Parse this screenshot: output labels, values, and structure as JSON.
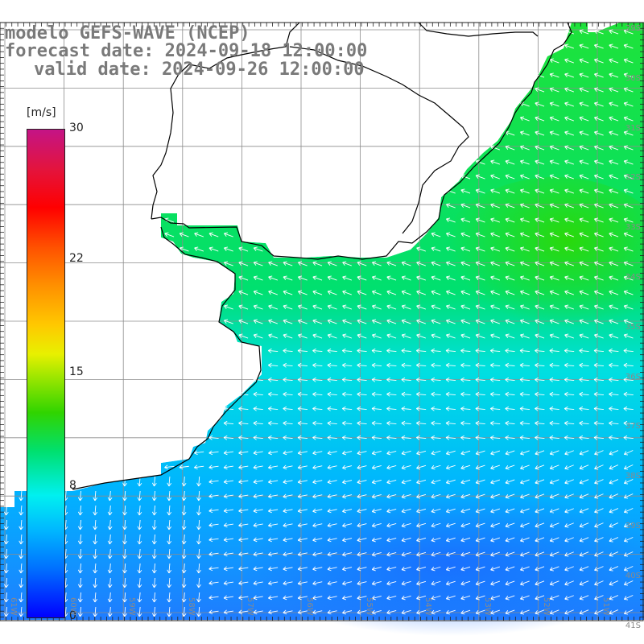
{
  "title": {
    "line1": "modelo GEFS-WAVE (NCEP)",
    "line2": "forecast date: 2024-09-18 12:00:00",
    "line3": "valid date: 2024-09-26 12:00:00"
  },
  "legend": {
    "unit": "[m/s]",
    "ticks": [
      {
        "label": "30",
        "value": 30
      },
      {
        "label": "22",
        "value": 22
      },
      {
        "label": "15",
        "value": 15
      },
      {
        "label": "8",
        "value": 8
      },
      {
        "label": "0",
        "value": 0
      }
    ]
  },
  "map": {
    "latitude_labels": [
      "29S",
      "30S",
      "31S",
      "32S",
      "33S",
      "34S",
      "35S",
      "36S",
      "37S",
      "38S",
      "39S",
      "40S",
      "41S"
    ],
    "longitude_labels": [
      "61W",
      "60W",
      "59W",
      "58W",
      "57W",
      "56W",
      "55W",
      "54W",
      "53W",
      "52W",
      "51W"
    ],
    "colors": {
      "ocean_green": "#1ee23a",
      "ocean_cyan": "#00e0e0",
      "ocean_blue": "#1f8cff",
      "grid": "#8c8c8c",
      "coast": "#000000"
    }
  }
}
